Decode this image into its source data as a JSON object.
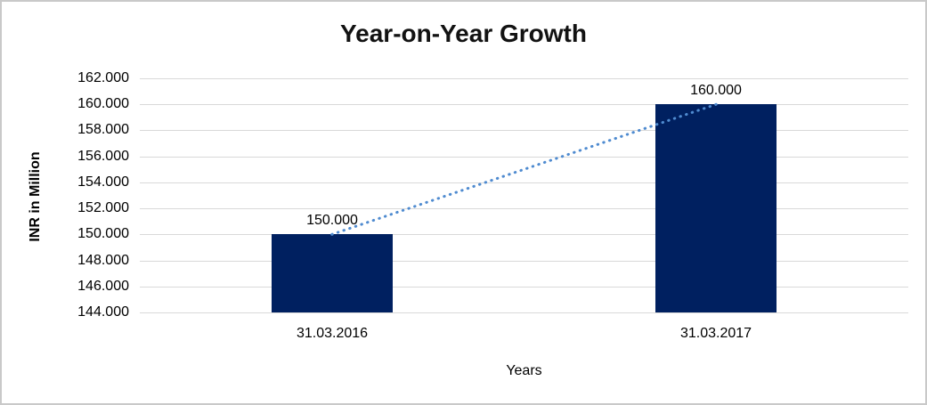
{
  "chart_data": {
    "type": "bar",
    "title": "Year-on-Year Growth",
    "xlabel": "Years",
    "ylabel": "INR in Million",
    "categories": [
      "31.03.2016",
      "31.03.2017"
    ],
    "values": [
      150000,
      160000
    ],
    "value_labels": [
      "150.000",
      "160.000"
    ],
    "ylim": [
      144000,
      162000
    ],
    "y_ticks": [
      {
        "value": 162000,
        "label": "162.000"
      },
      {
        "value": 160000,
        "label": "160.000"
      },
      {
        "value": 158000,
        "label": "158.000"
      },
      {
        "value": 156000,
        "label": "156.000"
      },
      {
        "value": 154000,
        "label": "154.000"
      },
      {
        "value": 152000,
        "label": "152.000"
      },
      {
        "value": 150000,
        "label": "150.000"
      },
      {
        "value": 148000,
        "label": "148.000"
      },
      {
        "value": 146000,
        "label": "146.000"
      },
      {
        "value": 144000,
        "label": "144.000"
      }
    ],
    "grid": true,
    "legend": false,
    "bar_color": "#002060",
    "trendline": {
      "style": "dotted",
      "color": "#4f8bd0",
      "connects_values": [
        150000,
        160000
      ]
    },
    "gridline_color": "#d9d9d9"
  }
}
